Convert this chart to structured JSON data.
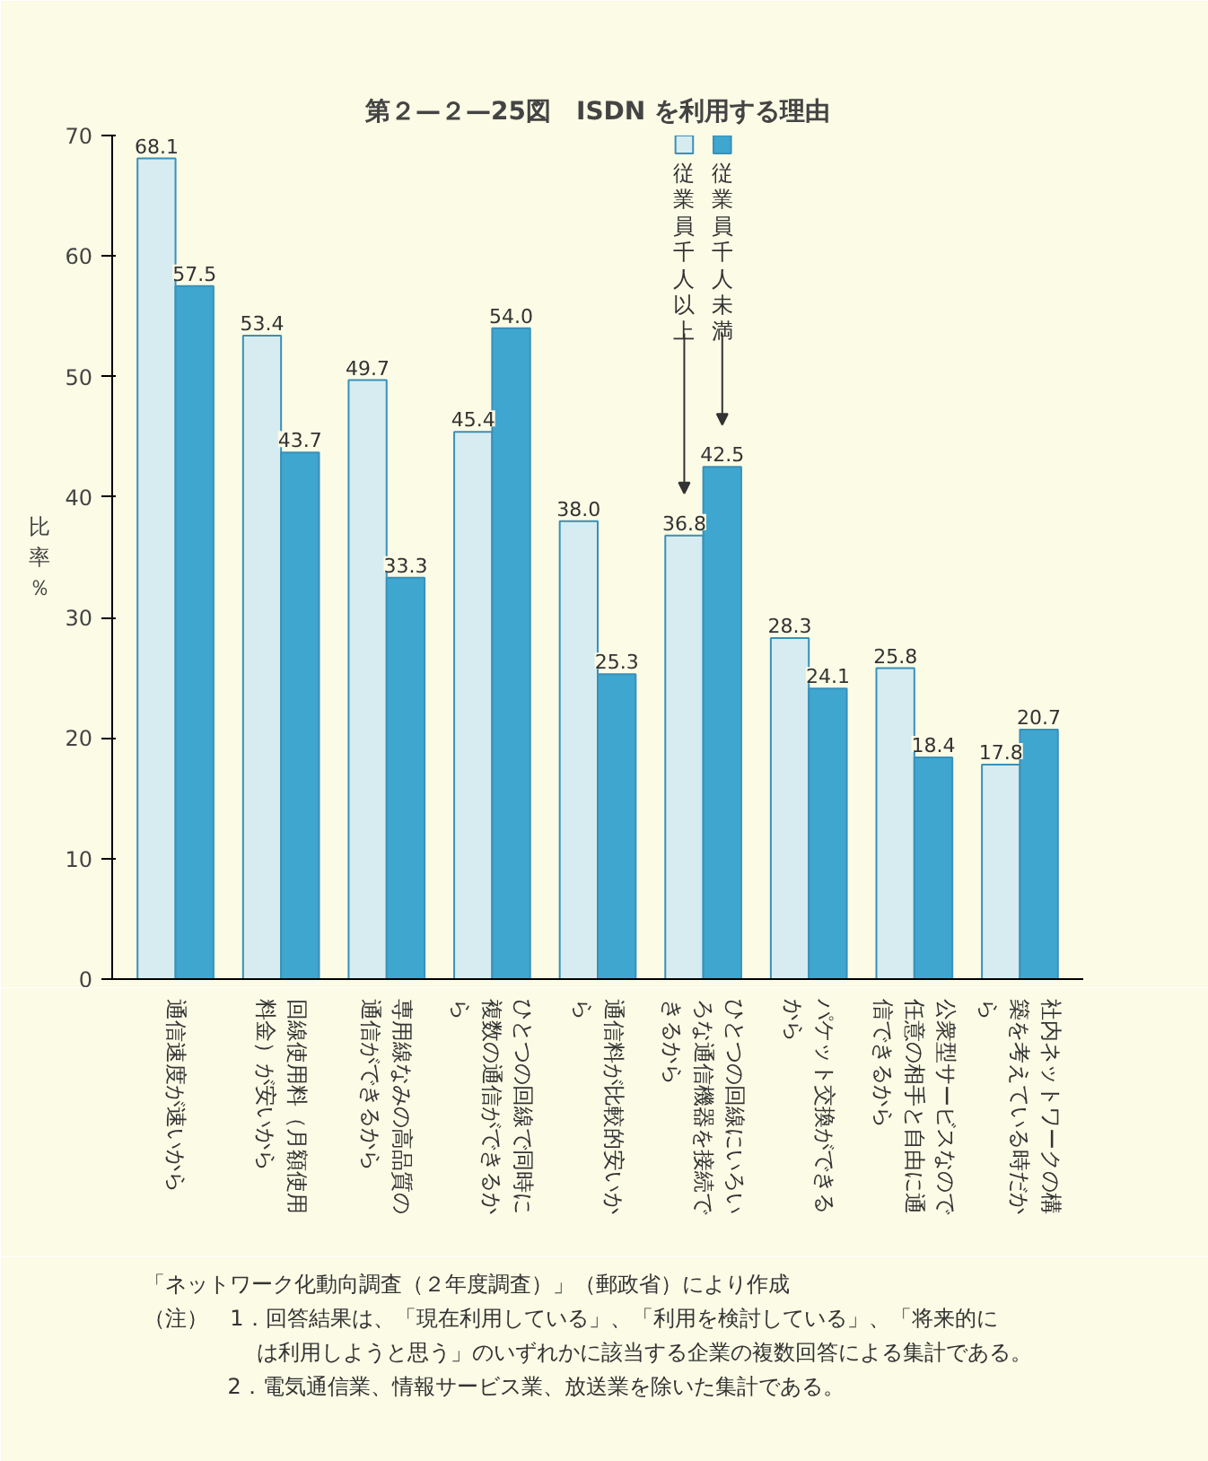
{
  "chart_data": {
    "type": "bar",
    "title": "第２—２—25図　ISDN を利用する理由",
    "ylabel": "比率％",
    "categories": [
      "通信速度が速いから",
      "回線使用料（月額使用料金）が安いから",
      "専用線なみの高品質の通信ができるから",
      "ひとつの回線で同時に複数の通信ができるから",
      "通信料が比較的安いから",
      "ひとつの回線にいろいろな通信機器を接続できるから",
      "パケット交換ができるから",
      "公衆型サービスなので任意の相手と自由に通信できるから",
      "社内ネットワークの構築を考えている時だから"
    ],
    "series": [
      {
        "name": "従業員千人以上",
        "color": "#d6ecf0",
        "values": [
          68.1,
          53.4,
          49.7,
          45.4,
          38.0,
          36.8,
          28.3,
          25.8,
          17.8
        ],
        "value_labels": [
          "68.1",
          "53.4",
          "49.7",
          "45.4",
          "38.0",
          "36.8",
          "28.3",
          "25.8",
          "17.8"
        ]
      },
      {
        "name": "従業員千人未満",
        "color": "#3fa7cf",
        "values": [
          57.5,
          43.7,
          33.3,
          54.0,
          25.3,
          42.5,
          24.1,
          18.4,
          20.7
        ],
        "value_labels": [
          "57.5",
          "43.7",
          "33.3",
          "54.0",
          "25.3",
          "42.5",
          "24.1",
          "18.4",
          "20.7"
        ]
      }
    ],
    "ylim": [
      0,
      70
    ],
    "yticks": [
      0,
      10,
      20,
      30,
      40,
      50,
      60,
      70
    ],
    "legend": "top",
    "tick_labels": "y",
    "annotations": [
      "「ネットワーク化動向調査（２年度調査）」（郵政省）により作成",
      "（注）　1．回答結果は、「現在利用している」、「利用を検討している」、「将来的には利用しようと思う」のいずれかに該当する企業の複数回答による集計である。",
      "2．電気通信業、情報サービス業、放送業を除いた集計である。"
    ]
  }
}
